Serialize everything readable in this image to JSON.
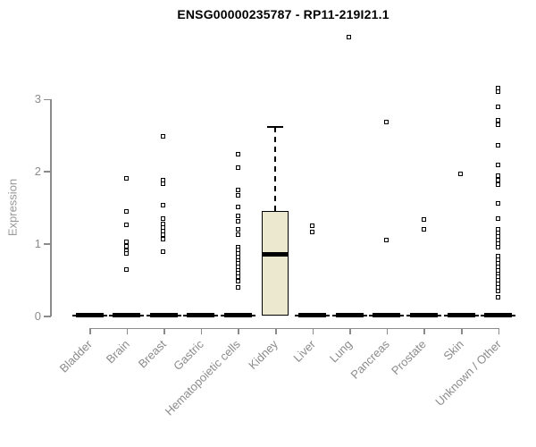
{
  "title": "ENSG00000235787 - RP11-219I21.1",
  "y_axis": {
    "label": "Expression"
  },
  "colors": {
    "box_fill": "#ECE8CF",
    "box_border": "#000000",
    "axis": "#8B8B8B",
    "tick_label": "#8B8B8B",
    "point": "#000000",
    "title": "#000000"
  },
  "chart_data": {
    "type": "boxplot",
    "title": "ENSG00000235787 - RP11-219I21.1",
    "xlabel": "",
    "ylabel": "Expression",
    "ylim": [
      0,
      3
    ],
    "y_ticks": [
      0,
      1,
      2,
      3
    ],
    "grid": false,
    "legend": false,
    "marker": "open-square",
    "categories": [
      "Bladder",
      "Brain",
      "Breast",
      "Gastric",
      "Hematopoietic cells",
      "Kidney",
      "Liver",
      "Lung",
      "Pancreas",
      "Prostate",
      "Skin",
      "Unknown / Other"
    ],
    "groups": [
      {
        "name": "Bladder",
        "zero_boxplot": true,
        "points": []
      },
      {
        "name": "Brain",
        "zero_boxplot": true,
        "points": [
          1.89,
          1.44,
          1.25,
          1.01,
          0.95,
          0.89,
          0.86,
          0.63
        ]
      },
      {
        "name": "Breast",
        "zero_boxplot": true,
        "points": [
          2.47,
          1.87,
          1.82,
          1.52,
          1.34,
          1.26,
          1.21,
          1.16,
          1.12,
          1.05,
          0.88
        ]
      },
      {
        "name": "Gastric",
        "zero_boxplot": true,
        "points": []
      },
      {
        "name": "Hematopoietic cells",
        "zero_boxplot": true,
        "points": [
          2.23,
          2.04,
          1.73,
          1.66,
          1.5,
          1.37,
          1.3,
          1.19,
          1.11,
          0.94,
          0.9,
          0.85,
          0.81,
          0.76,
          0.72,
          0.67,
          0.62,
          0.58,
          0.53,
          0.47,
          0.38
        ]
      },
      {
        "name": "Kidney",
        "zero_boxplot": false,
        "points": [],
        "box": {
          "whisker_low": 0,
          "q1": 0,
          "median": 0.85,
          "q3": 1.45,
          "whisker_high": 2.61
        }
      },
      {
        "name": "Liver",
        "zero_boxplot": true,
        "points": [
          1.24,
          1.15
        ]
      },
      {
        "name": "Lung",
        "zero_boxplot": true,
        "points": [
          3.85
        ]
      },
      {
        "name": "Pancreas",
        "zero_boxplot": true,
        "points": [
          2.67,
          1.04
        ]
      },
      {
        "name": "Prostate",
        "zero_boxplot": true,
        "points": [
          1.32,
          1.19
        ]
      },
      {
        "name": "Skin",
        "zero_boxplot": true,
        "points": [
          1.96
        ]
      },
      {
        "name": "Unknown / Other",
        "zero_boxplot": true,
        "points": [
          3.14,
          3.09,
          2.88,
          2.7,
          2.64,
          2.35,
          2.08,
          1.93,
          1.87,
          1.81,
          1.55,
          1.34,
          1.19,
          1.14,
          1.09,
          1.04,
          0.99,
          0.94,
          0.82,
          0.77,
          0.72,
          0.67,
          0.62,
          0.57,
          0.53,
          0.48,
          0.43,
          0.38,
          0.33,
          0.25
        ]
      }
    ]
  }
}
